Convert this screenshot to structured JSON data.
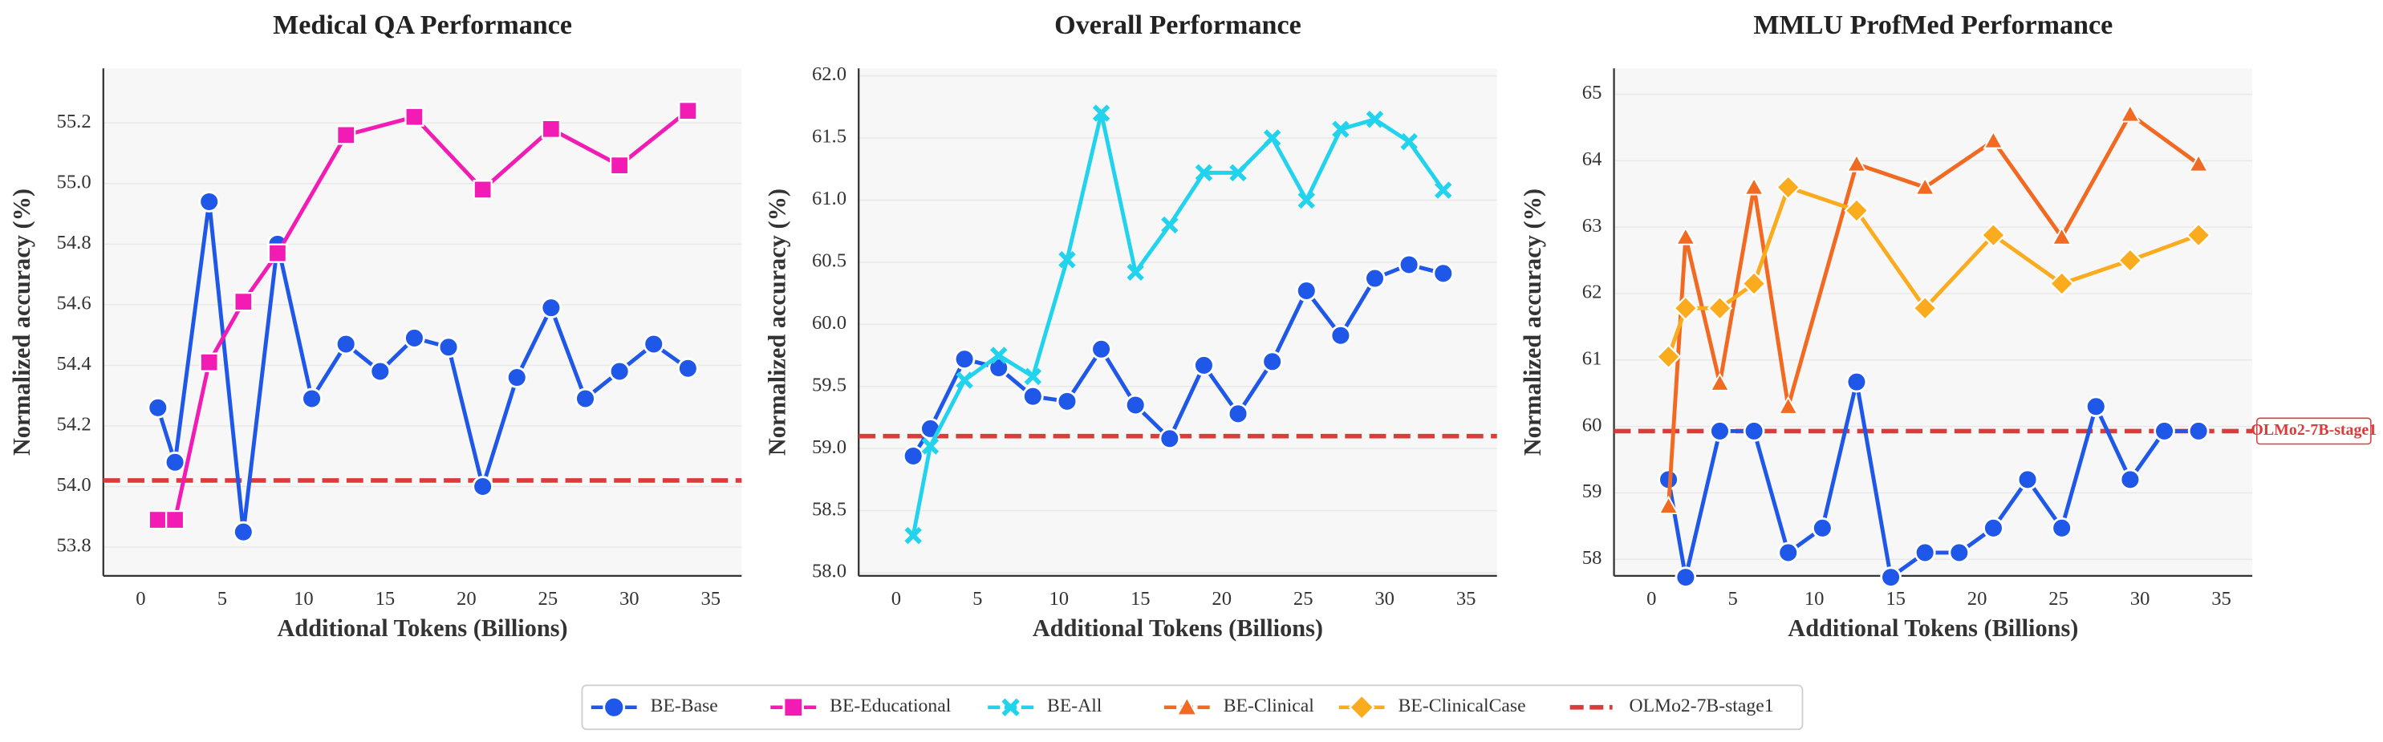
{
  "chart_data": [
    {
      "type": "line",
      "title": "Medical QA Performance",
      "x_label": "Additional Tokens (Billions)",
      "y_label": "Normalized accuracy (%)",
      "xlim": [
        -2.3,
        36.9
      ],
      "xticks": [
        0,
        5,
        10,
        15,
        20,
        25,
        30,
        35
      ],
      "ylim": [
        53.705,
        55.38
      ],
      "yticks": [
        53.8,
        {
          "value": 54.0,
          "label": "54.0"
        },
        54.2,
        54.4,
        54.6,
        54.8,
        {
          "value": 55.0,
          "label": "55.0"
        },
        55.2
      ],
      "grid": true,
      "series": [
        {
          "name": "BE-Base",
          "color": "#1f58e8",
          "marker": "circle",
          "x": [
            1.05,
            2.1,
            4.2,
            6.3,
            8.4,
            10.5,
            12.6,
            14.7,
            16.8,
            18.9,
            21,
            23.1,
            25.2,
            27.3,
            29.4,
            31.5,
            33.6
          ],
          "values": [
            54.26,
            54.08,
            54.94,
            53.85,
            54.8,
            54.29,
            54.47,
            54.38,
            54.49,
            54.46,
            54.0,
            54.36,
            54.59,
            54.29,
            54.38,
            54.47,
            54.39
          ]
        },
        {
          "name": "BE-Educational",
          "color": "#f21cb4",
          "marker": "square",
          "x": [
            1.05,
            2.1,
            4.2,
            6.3,
            8.4,
            12.6,
            16.8,
            21,
            25.2,
            29.4,
            33.6
          ],
          "values": [
            53.89,
            53.89,
            54.41,
            54.61,
            54.77,
            55.16,
            55.22,
            54.98,
            55.18,
            55.06,
            55.24
          ]
        }
      ],
      "reference": {
        "name": "OLMo2-7B-stage1",
        "value": 54.02,
        "color": "#dc3b3b"
      }
    },
    {
      "type": "line",
      "title": "Overall Performance",
      "x_label": "Additional Tokens (Billions)",
      "y_label": "Normalized accuracy (%)",
      "xlim": [
        -2.3,
        36.9
      ],
      "xticks": [
        0,
        5,
        10,
        15,
        20,
        25,
        30,
        35
      ],
      "ylim": [
        57.975,
        62.06
      ],
      "yticks": [
        {
          "value": 58.0,
          "label": "58.0"
        },
        58.5,
        {
          "value": 59.0,
          "label": "59.0"
        },
        59.5,
        {
          "value": 60.0,
          "label": "60.0"
        },
        60.5,
        {
          "value": 61.0,
          "label": "61.0"
        },
        61.5,
        {
          "value": 62.0,
          "label": "62.0"
        }
      ],
      "grid": true,
      "series": [
        {
          "name": "BE-Base",
          "color": "#1f58e8",
          "marker": "circle",
          "x": [
            1.05,
            2.1,
            4.2,
            6.3,
            8.4,
            10.5,
            12.6,
            14.7,
            16.8,
            18.9,
            21,
            23.1,
            25.2,
            27.3,
            29.4,
            31.5,
            33.6
          ],
          "values": [
            58.94,
            59.16,
            59.72,
            59.65,
            59.42,
            59.38,
            59.8,
            59.35,
            59.08,
            59.67,
            59.28,
            59.7,
            60.27,
            59.91,
            60.37,
            60.48,
            60.41
          ]
        },
        {
          "name": "BE-All",
          "color": "#22d3ee",
          "marker": "x",
          "x": [
            1.05,
            2.1,
            4.2,
            6.3,
            8.4,
            10.5,
            12.6,
            14.7,
            16.8,
            18.9,
            21,
            23.1,
            25.2,
            27.3,
            29.4,
            31.5,
            33.6
          ],
          "values": [
            58.3,
            59.02,
            59.55,
            59.75,
            59.58,
            60.52,
            61.7,
            60.42,
            60.8,
            61.22,
            61.22,
            61.5,
            61.0,
            61.57,
            61.65,
            61.47,
            61.08
          ]
        }
      ],
      "reference": {
        "name": "OLMo2-7B-stage1",
        "value": 59.1,
        "color": "#dc3b3b"
      }
    },
    {
      "type": "line",
      "title": "MMLU ProfMed Performance",
      "x_label": "Additional Tokens (Billions)",
      "y_label": "Normalized accuracy (%)",
      "xlim": [
        -2.3,
        36.9
      ],
      "xticks": [
        0,
        5,
        10,
        15,
        20,
        25,
        30,
        35
      ],
      "ylim": [
        57.75,
        65.39
      ],
      "yticks": [
        58,
        59,
        60,
        61,
        62,
        63,
        64,
        65
      ],
      "grid": true,
      "series": [
        {
          "name": "BE-Base",
          "color": "#1f58e8",
          "marker": "circle",
          "x": [
            1.05,
            2.1,
            4.2,
            6.3,
            8.4,
            10.5,
            12.6,
            14.7,
            16.8,
            18.9,
            21,
            23.1,
            25.2,
            27.3,
            29.4,
            31.5,
            33.6
          ],
          "values": [
            59.2,
            57.73,
            59.93,
            59.93,
            58.1,
            58.47,
            60.67,
            57.73,
            58.1,
            58.1,
            58.47,
            59.2,
            58.47,
            60.3,
            59.2,
            59.93,
            59.93
          ]
        },
        {
          "name": "BE-Clinical",
          "color": "#f26a21",
          "marker": "triangle",
          "x": [
            1.05,
            2.1,
            4.2,
            6.3,
            8.4,
            12.6,
            16.8,
            21,
            25.2,
            29.4,
            33.6
          ],
          "values": [
            58.8,
            62.85,
            60.65,
            63.6,
            60.3,
            63.95,
            63.6,
            64.3,
            62.85,
            64.7,
            63.95
          ]
        },
        {
          "name": "BE-ClinicalCase",
          "color": "#fbab1e",
          "marker": "diamond",
          "x": [
            1.05,
            2.1,
            4.2,
            6.3,
            8.4,
            12.6,
            16.8,
            21,
            25.2,
            29.4,
            33.6
          ],
          "values": [
            61.05,
            61.78,
            61.78,
            62.15,
            63.6,
            63.25,
            61.78,
            62.88,
            62.15,
            62.5,
            62.88
          ]
        }
      ],
      "reference": {
        "name": "OLMo2-7B-stage1",
        "value": 59.93,
        "color": "#dc3b3b",
        "labeled": true
      }
    }
  ]
}
